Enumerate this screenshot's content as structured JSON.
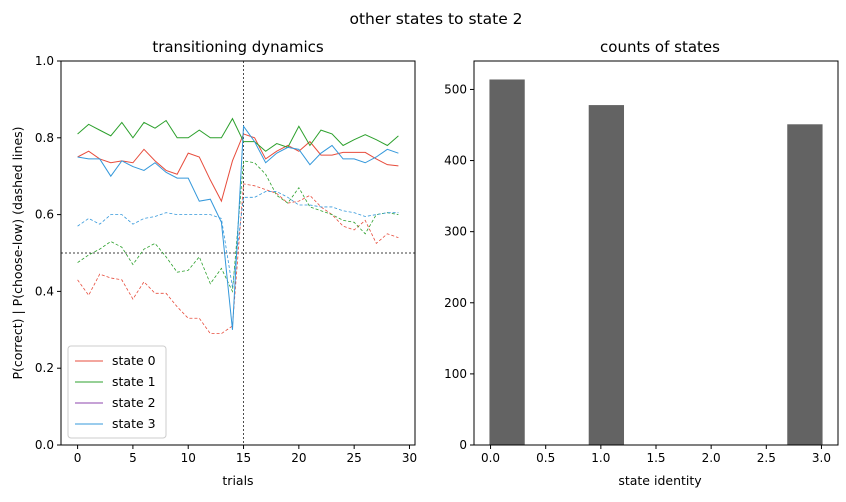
{
  "suptitle": "other states to state 2",
  "colors": {
    "state_0": "#e74c3c",
    "state_1": "#2ca02c",
    "state_2": "#8e44ad",
    "state_3": "#3498db",
    "bar": "#636363"
  },
  "chart_data": [
    {
      "type": "line",
      "title": "transitioning dynamics",
      "xlabel": "trials",
      "ylabel": "P(correct) | P(choose-low) (dashed lines)",
      "xlim": [
        -1.5,
        30.5
      ],
      "ylim": [
        0.0,
        1.0
      ],
      "xticks": [
        0,
        5,
        10,
        15,
        20,
        25,
        30
      ],
      "yticks": [
        0.0,
        0.2,
        0.4,
        0.6,
        0.8,
        1.0
      ],
      "vline_x": 15,
      "hline_y": 0.5,
      "legend_position": "lower-left",
      "x": [
        0,
        1,
        2,
        3,
        4,
        5,
        6,
        7,
        8,
        9,
        10,
        11,
        12,
        13,
        14,
        15,
        16,
        17,
        18,
        19,
        20,
        21,
        22,
        23,
        24,
        25,
        26,
        27,
        28,
        29
      ],
      "series": [
        {
          "name": "state 0",
          "color_key": "state_0",
          "solid": [
            0.75,
            0.765,
            0.745,
            0.735,
            0.74,
            0.735,
            0.77,
            0.74,
            0.715,
            0.705,
            0.76,
            0.75,
            0.69,
            0.635,
            0.74,
            0.81,
            0.8,
            0.745,
            0.765,
            0.78,
            0.765,
            0.79,
            0.755,
            0.755,
            0.762,
            0.762,
            0.762,
            0.745,
            0.73,
            0.727
          ],
          "dashed": [
            0.43,
            0.39,
            0.445,
            0.435,
            0.43,
            0.38,
            0.425,
            0.395,
            0.395,
            0.36,
            0.33,
            0.33,
            0.29,
            0.29,
            0.31,
            0.68,
            0.675,
            0.665,
            0.655,
            0.63,
            0.635,
            0.65,
            0.62,
            0.6,
            0.57,
            0.56,
            0.585,
            0.525,
            0.55,
            0.54
          ]
        },
        {
          "name": "state 1",
          "color_key": "state_1",
          "solid": [
            0.81,
            0.835,
            0.82,
            0.805,
            0.84,
            0.8,
            0.84,
            0.825,
            0.845,
            0.8,
            0.8,
            0.82,
            0.8,
            0.8,
            0.85,
            0.79,
            0.79,
            0.765,
            0.785,
            0.775,
            0.83,
            0.78,
            0.82,
            0.81,
            0.78,
            0.795,
            0.808,
            0.795,
            0.78,
            0.805
          ],
          "dashed": [
            0.475,
            0.495,
            0.51,
            0.53,
            0.515,
            0.47,
            0.51,
            0.525,
            0.49,
            0.45,
            0.455,
            0.49,
            0.42,
            0.46,
            0.4,
            0.74,
            0.735,
            0.705,
            0.65,
            0.63,
            0.67,
            0.62,
            0.61,
            0.6,
            0.585,
            0.58,
            0.55,
            0.6,
            0.605,
            0.6
          ]
        },
        {
          "name": "state 2",
          "color_key": "state_2",
          "solid": [],
          "dashed": []
        },
        {
          "name": "state 3",
          "color_key": "state_3",
          "solid": [
            0.75,
            0.745,
            0.745,
            0.7,
            0.74,
            0.725,
            0.715,
            0.735,
            0.71,
            0.695,
            0.695,
            0.635,
            0.64,
            0.58,
            0.3,
            0.83,
            0.79,
            0.735,
            0.76,
            0.775,
            0.77,
            0.73,
            0.76,
            0.78,
            0.745,
            0.745,
            0.735,
            0.75,
            0.77,
            0.76
          ],
          "dashed": [
            0.57,
            0.59,
            0.575,
            0.6,
            0.6,
            0.575,
            0.59,
            0.595,
            0.605,
            0.6,
            0.6,
            0.6,
            0.6,
            0.59,
            0.41,
            0.645,
            0.645,
            0.66,
            0.66,
            0.645,
            0.625,
            0.625,
            0.62,
            0.62,
            0.61,
            0.605,
            0.595,
            0.6,
            0.605,
            0.605
          ]
        }
      ]
    },
    {
      "type": "bar",
      "title": "counts of states",
      "xlabel": "state identity",
      "ylabel": "",
      "xlim": [
        -0.15,
        3.15
      ],
      "ylim": [
        0,
        540
      ],
      "xticks": [
        0.0,
        0.5,
        1.0,
        1.5,
        2.0,
        2.5,
        3.0
      ],
      "yticks": [
        0,
        100,
        200,
        300,
        400,
        500
      ],
      "bar_width": 0.32,
      "bars": [
        {
          "x": 0.15,
          "value": 514
        },
        {
          "x": 1.05,
          "value": 478
        },
        {
          "x": 2.85,
          "value": 451
        }
      ]
    }
  ]
}
